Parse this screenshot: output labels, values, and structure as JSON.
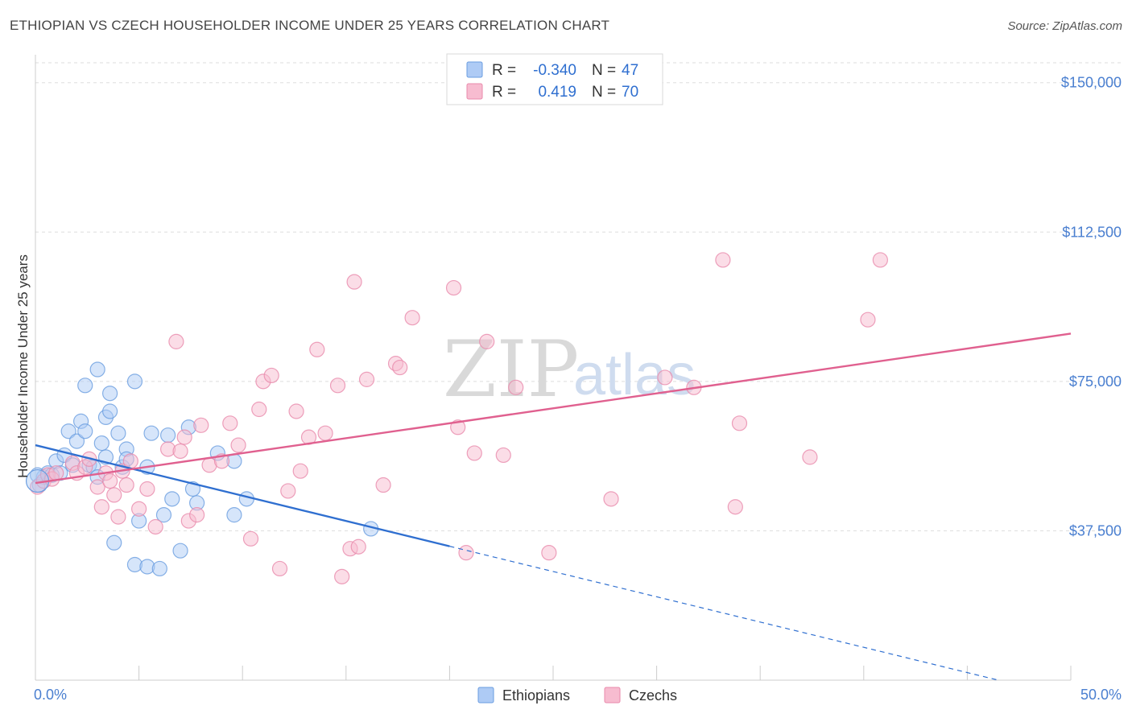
{
  "title": "ETHIOPIAN VS CZECH HOUSEHOLDER INCOME UNDER 25 YEARS CORRELATION CHART",
  "source": "Source: ZipAtlas.com",
  "watermark": {
    "left": "ZIP",
    "right": "atlas"
  },
  "colors": {
    "ethiopians_fill": "#aecbf5",
    "ethiopians_stroke": "#6a9de0",
    "ethiopians_line": "#2f6fd0",
    "czechs_fill": "#f7bcd0",
    "czechs_stroke": "#e88aab",
    "czechs_line": "#e0608f",
    "tick_label": "#4a7fd0",
    "grid": "#dddddd"
  },
  "legend": {
    "rows": [
      {
        "r_label": "R =",
        "r_value": "-0.340",
        "n_label": "N =",
        "n_value": "47"
      },
      {
        "r_label": "R =",
        "r_value": "0.419",
        "n_label": "N =",
        "n_value": "70"
      }
    ]
  },
  "bottom_legend": [
    "Ethiopians",
    "Czechs"
  ],
  "chart_data": {
    "type": "scatter",
    "xlabel": "",
    "ylabel": "Householder Income Under 25 years",
    "xlim": [
      0,
      50
    ],
    "ylim": [
      0,
      155000
    ],
    "x_tick_labels": {
      "min": "0.0%",
      "max": "50.0%"
    },
    "y_ticks": [
      37500,
      75000,
      112500,
      150000
    ],
    "y_tick_labels": [
      "$37,500",
      "$75,000",
      "$112,500",
      "$150,000"
    ],
    "grid": "dashed horizontal",
    "legend_position": "top-center",
    "series": [
      {
        "name": "Ethiopians",
        "trend": {
          "x_start": 0,
          "y_start": 59000,
          "x_solid_end": 20,
          "x_end": 46.5,
          "y_end": 0
        },
        "points": [
          [
            0.2,
            49000
          ],
          [
            0.4,
            51000
          ],
          [
            0.6,
            52000
          ],
          [
            0.8,
            51500
          ],
          [
            1.0,
            55000
          ],
          [
            1.2,
            52000
          ],
          [
            1.4,
            56500
          ],
          [
            1.6,
            62500
          ],
          [
            1.8,
            54000
          ],
          [
            2.0,
            60000
          ],
          [
            2.2,
            65000
          ],
          [
            2.4,
            62500
          ],
          [
            2.6,
            54000
          ],
          [
            2.4,
            74000
          ],
          [
            2.8,
            53500
          ],
          [
            3.0,
            51000
          ],
          [
            3.0,
            78000
          ],
          [
            3.2,
            59500
          ],
          [
            3.4,
            56000
          ],
          [
            3.4,
            66000
          ],
          [
            3.6,
            67500
          ],
          [
            3.6,
            72000
          ],
          [
            3.8,
            34500
          ],
          [
            4.0,
            62000
          ],
          [
            4.2,
            53500
          ],
          [
            4.4,
            58000
          ],
          [
            4.4,
            55500
          ],
          [
            4.8,
            75000
          ],
          [
            4.8,
            29000
          ],
          [
            5.0,
            40000
          ],
          [
            5.4,
            28500
          ],
          [
            5.4,
            53500
          ],
          [
            5.6,
            62000
          ],
          [
            6.0,
            28000
          ],
          [
            6.2,
            41500
          ],
          [
            6.4,
            61500
          ],
          [
            6.6,
            45500
          ],
          [
            7.0,
            32500
          ],
          [
            7.4,
            63500
          ],
          [
            7.6,
            48000
          ],
          [
            7.8,
            44500
          ],
          [
            8.8,
            57000
          ],
          [
            9.6,
            41500
          ],
          [
            9.6,
            55000
          ],
          [
            10.2,
            45500
          ],
          [
            16.2,
            38000
          ],
          [
            0.1,
            51500
          ]
        ]
      },
      {
        "name": "Czechs",
        "trend": {
          "x_start": 0,
          "y_start": 49500,
          "x_end": 50,
          "y_end": 87000
        },
        "points": [
          [
            0.1,
            48500
          ],
          [
            0.4,
            50000
          ],
          [
            0.6,
            51500
          ],
          [
            0.8,
            50500
          ],
          [
            1.0,
            52000
          ],
          [
            1.8,
            54500
          ],
          [
            2.0,
            52000
          ],
          [
            2.4,
            53500
          ],
          [
            2.6,
            55500
          ],
          [
            3.0,
            48500
          ],
          [
            3.2,
            43500
          ],
          [
            3.4,
            52000
          ],
          [
            3.6,
            50000
          ],
          [
            3.8,
            46500
          ],
          [
            4.0,
            41000
          ],
          [
            4.2,
            52500
          ],
          [
            4.4,
            49000
          ],
          [
            4.6,
            55000
          ],
          [
            5.0,
            43000
          ],
          [
            5.4,
            48000
          ],
          [
            5.8,
            38500
          ],
          [
            6.4,
            58000
          ],
          [
            6.8,
            85000
          ],
          [
            7.0,
            57500
          ],
          [
            7.2,
            61000
          ],
          [
            7.4,
            40000
          ],
          [
            7.8,
            41500
          ],
          [
            8.0,
            64000
          ],
          [
            8.4,
            54000
          ],
          [
            9.0,
            55000
          ],
          [
            9.4,
            64500
          ],
          [
            9.8,
            59000
          ],
          [
            10.4,
            35500
          ],
          [
            10.8,
            68000
          ],
          [
            11.0,
            75000
          ],
          [
            11.4,
            76500
          ],
          [
            11.8,
            28000
          ],
          [
            12.2,
            47500
          ],
          [
            12.6,
            67500
          ],
          [
            12.8,
            52500
          ],
          [
            13.2,
            61000
          ],
          [
            13.6,
            83000
          ],
          [
            14.0,
            62000
          ],
          [
            14.6,
            74000
          ],
          [
            14.8,
            26000
          ],
          [
            15.2,
            33000
          ],
          [
            15.6,
            33500
          ],
          [
            15.4,
            100000
          ],
          [
            16.0,
            75500
          ],
          [
            16.8,
            49000
          ],
          [
            17.4,
            79500
          ],
          [
            17.6,
            78500
          ],
          [
            18.2,
            91000
          ],
          [
            20.2,
            98500
          ],
          [
            20.4,
            63500
          ],
          [
            20.8,
            32000
          ],
          [
            21.2,
            57000
          ],
          [
            21.8,
            85000
          ],
          [
            22.6,
            56500
          ],
          [
            23.2,
            73500
          ],
          [
            24.8,
            32000
          ],
          [
            27.8,
            45500
          ],
          [
            30.4,
            76000
          ],
          [
            31.8,
            73500
          ],
          [
            33.2,
            105500
          ],
          [
            33.8,
            43500
          ],
          [
            34.0,
            64500
          ],
          [
            37.4,
            56000
          ],
          [
            40.2,
            90500
          ],
          [
            40.8,
            105500
          ]
        ]
      }
    ]
  }
}
